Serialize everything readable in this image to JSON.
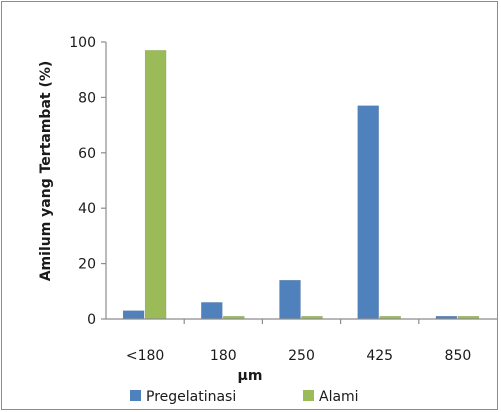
{
  "chart_data": {
    "type": "bar",
    "categories": [
      "<180",
      "180",
      "250",
      "425",
      "850"
    ],
    "series": [
      {
        "name": "Pregelatinasi",
        "values": [
          3,
          6,
          14,
          77,
          1
        ],
        "color": "#4f81bd"
      },
      {
        "name": "Alami",
        "values": [
          97,
          1,
          1,
          1,
          1
        ],
        "color": "#9bbb59"
      }
    ],
    "xlabel": "µm",
    "ylabel": "Amilum yang Tertambat (%)",
    "ylim": [
      0,
      100
    ],
    "yticks": [
      0,
      20,
      40,
      60,
      80,
      100
    ],
    "grid": false,
    "legend_position": "bottom"
  }
}
